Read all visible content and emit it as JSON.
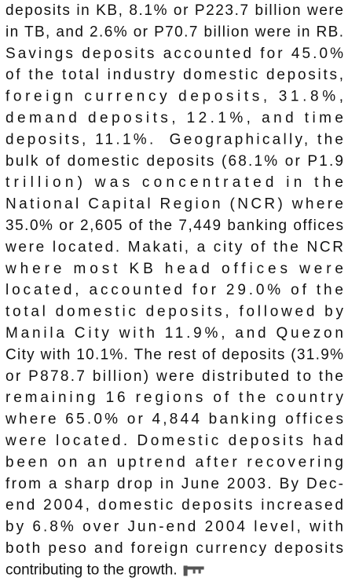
{
  "paragraph": {
    "lines": [
      "deposits in KB, 8.1% or P223.7 billion were",
      "in TB, and 2.6% or P70.7 billion were in RB.",
      "Savings deposits accounted for 45.0%",
      "of the total industry domestic deposits,",
      "foreign currency deposits, 31.8%,",
      "demand deposits, 12.1%, and time",
      "deposits, 11.1%.  Geographically, the",
      "bulk of domestic deposits (68.1% or P1.9",
      "trillion) was concentrated in the",
      "National Capital Region (NCR) where",
      "35.0% or 2,605 of the 7,449 banking offices",
      "were located. Makati, a city of the NCR",
      "where most KB head offices were",
      "located, accounted for 29.0% of the",
      "total domestic deposits, followed by",
      "Manila City with 11.9%, and Quezon",
      "City with 10.1%. The rest of deposits (31.9%",
      "or P878.7 billion) were distributed to the",
      "remaining 16 regions of the country",
      "where 65.0% or 4,844 banking offices",
      "were located. Domestic deposits had",
      "been on an uptrend after recovering",
      "from a sharp drop in June 2003. By Dec-",
      "end 2004, domestic deposits increased",
      "by 6.8% over Jun-end 2004 level, with",
      "both peso and foreign currency deposits",
      "contributing to the growth."
    ]
  }
}
